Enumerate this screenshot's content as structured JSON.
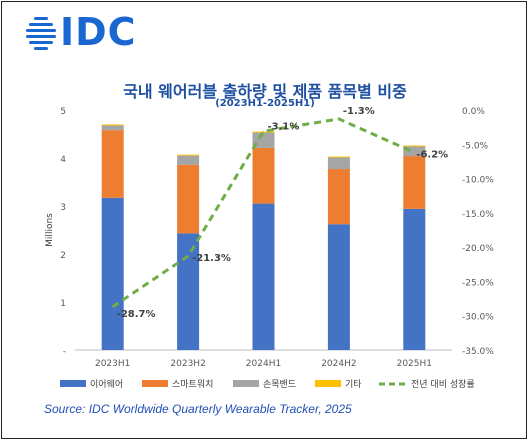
{
  "brand": {
    "logo_text": "IDC",
    "logo_color": "#1a67d2"
  },
  "title": "국내 웨어러블 출하량 및 제품 품목별 비중",
  "subtitle": "(2023H1-2025H1)",
  "source": "Source: IDC Worldwide Quarterly Wearable Tracker, 2025",
  "chart_data": {
    "type": "bar",
    "stacked": true,
    "categories": [
      "2023H1",
      "2023H2",
      "2024H1",
      "2024H2",
      "2025H1"
    ],
    "ylabel": "Millions",
    "ylim": [
      0,
      5
    ],
    "y_ticks": [
      "-",
      "1",
      "2",
      "3",
      "4",
      "5"
    ],
    "y2lim": [
      -35,
      0
    ],
    "y2_ticks": [
      "0.0%",
      "-5.0%",
      "-10.0%",
      "-15.0%",
      "-20.0%",
      "-25.0%",
      "-30.0%",
      "-35.0%"
    ],
    "grid": false,
    "legend_position": "bottom",
    "series": [
      {
        "name": "이어웨어",
        "color": "#4472c4",
        "values": [
          3.17,
          2.43,
          3.05,
          2.62,
          2.94
        ]
      },
      {
        "name": "스마트워치",
        "color": "#ed7d31",
        "values": [
          1.41,
          1.43,
          1.16,
          1.15,
          1.1
        ]
      },
      {
        "name": "손목밴드",
        "color": "#a5a5a5",
        "values": [
          0.1,
          0.19,
          0.32,
          0.24,
          0.2
        ]
      },
      {
        "name": "기타",
        "color": "#ffc000",
        "values": [
          0.02,
          0.02,
          0.02,
          0.02,
          0.02
        ]
      }
    ],
    "line_series": {
      "name": "전년 대비 성장률",
      "color": "#70ad47",
      "axis": "right",
      "values": [
        -28.7,
        -21.3,
        -3.1,
        -1.3,
        -6.2
      ],
      "labels": [
        "-28.7%",
        "-21.3%",
        "-3.1%",
        "-1.3%",
        "-6.2%"
      ]
    }
  }
}
